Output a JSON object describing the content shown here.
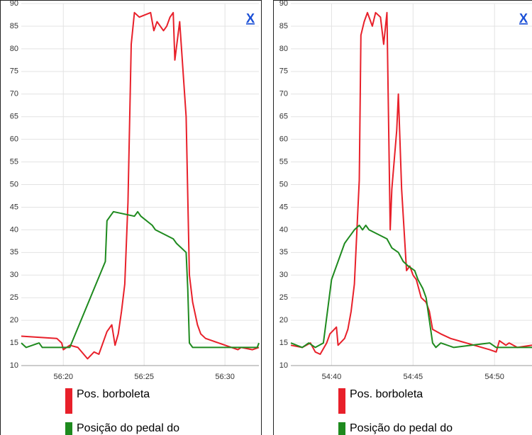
{
  "chart_data": [
    {
      "type": "line",
      "close_label": "X",
      "xlim": [
        3377.4,
        3392.1
      ],
      "xticks": [
        {
          "value": 3380,
          "label": "56:20"
        },
        {
          "value": 3385,
          "label": "56:25"
        },
        {
          "value": 3390,
          "label": "56:30"
        }
      ],
      "ylim": [
        10,
        90
      ],
      "yticks": [
        10,
        15,
        20,
        25,
        30,
        35,
        40,
        45,
        50,
        55,
        60,
        65,
        70,
        75,
        80,
        85,
        90
      ],
      "grid": true,
      "series": [
        {
          "name": "Pos. borboleta",
          "color": "#e8202a",
          "x": [
            3377.4,
            3379.6,
            3379.9,
            3380.0,
            3380.4,
            3380.9,
            3381.5,
            3381.9,
            3382.2,
            3382.7,
            3383.0,
            3383.2,
            3383.4,
            3383.6,
            3383.8,
            3384.0,
            3384.2,
            3384.4,
            3384.7,
            3385.4,
            3385.6,
            3385.8,
            3386.2,
            3386.4,
            3386.6,
            3386.8,
            3386.9,
            3387.2,
            3387.6,
            3387.8,
            3388.0,
            3388.3,
            3388.5,
            3388.8,
            3390.8,
            3391.0,
            3391.7,
            3392.1
          ],
          "values": [
            16.5,
            16,
            15,
            13.5,
            14.5,
            14,
            11.5,
            13,
            12.5,
            17.5,
            19,
            14.5,
            17,
            22,
            28,
            46,
            81,
            88,
            87,
            88,
            84,
            86,
            84,
            85,
            87,
            88,
            77.5,
            86,
            65,
            30,
            24,
            19,
            17,
            16,
            13.5,
            14,
            13.5,
            14
          ]
        },
        {
          "name": "Posição do pedal do",
          "color": "#1e8a1e",
          "x": [
            3377.4,
            3377.7,
            3378.5,
            3378.7,
            3380.4,
            3382.6,
            3382.7,
            3382.9,
            3383.1,
            3384.4,
            3384.6,
            3384.8,
            3385.5,
            3385.7,
            3386.8,
            3387.0,
            3387.6,
            3387.7,
            3387.8,
            3388.0,
            3392.0,
            3392.1
          ],
          "values": [
            15,
            14,
            15,
            14,
            14,
            33,
            42,
            43,
            44,
            43,
            44,
            43,
            41,
            40,
            38,
            37,
            35,
            27,
            15,
            14,
            14,
            15
          ]
        }
      ]
    },
    {
      "type": "line",
      "close_label": "X",
      "xlim": [
        3277.5,
        3292.3
      ],
      "xticks": [
        {
          "value": 3280,
          "label": "54:40"
        },
        {
          "value": 3285,
          "label": "54:45"
        },
        {
          "value": 3290,
          "label": "54:50"
        }
      ],
      "ylim": [
        10,
        90
      ],
      "yticks": [
        10,
        15,
        20,
        25,
        30,
        35,
        40,
        45,
        50,
        55,
        60,
        65,
        70,
        75,
        80,
        85,
        90
      ],
      "grid": true,
      "series": [
        {
          "name": "Pos. borboleta",
          "color": "#e8202a",
          "x": [
            3277.5,
            3278.2,
            3278.7,
            3279.0,
            3279.3,
            3279.7,
            3279.9,
            3280.3,
            3280.4,
            3280.8,
            3281.0,
            3281.2,
            3281.4,
            3281.7,
            3281.8,
            3282.0,
            3282.2,
            3282.5,
            3282.7,
            3283.0,
            3283.2,
            3283.4,
            3283.6,
            3283.7,
            3284.0,
            3284.1,
            3284.3,
            3284.6,
            3284.8,
            3285.0,
            3285.2,
            3285.5,
            3285.8,
            3286.0,
            3286.2,
            3286.7,
            3287.3,
            3289.7,
            3290.1,
            3290.3,
            3290.7,
            3290.9,
            3291.4,
            3292.3
          ],
          "values": [
            14.5,
            14,
            15,
            13,
            12.5,
            15,
            17,
            18.5,
            14.5,
            16,
            18,
            22,
            28,
            51,
            83,
            86,
            88,
            85,
            88,
            87,
            81,
            88,
            40,
            49,
            62,
            70,
            49,
            31,
            32,
            30,
            29,
            25,
            24,
            22,
            18,
            17,
            16,
            13.5,
            13,
            15.5,
            14.5,
            15,
            14,
            14.5
          ]
        },
        {
          "name": "Posição do pedal do",
          "color": "#1e8a1e",
          "x": [
            3277.5,
            3278.2,
            3278.6,
            3279.0,
            3279.5,
            3280.0,
            3280.8,
            3281.0,
            3281.2,
            3281.4,
            3281.7,
            3281.9,
            3282.1,
            3282.3,
            3283.4,
            3283.7,
            3284.1,
            3284.4,
            3284.7,
            3285.1,
            3285.3,
            3285.6,
            3285.8,
            3286.0,
            3286.2,
            3286.4,
            3286.7,
            3287.5,
            3289.7,
            3290.1,
            3292.3
          ],
          "values": [
            15,
            14,
            15,
            14,
            15,
            29,
            37,
            38,
            39,
            40,
            41,
            40,
            41,
            40,
            38,
            36,
            35,
            33,
            32,
            31,
            29,
            27,
            25,
            20,
            15,
            14,
            15,
            14,
            15,
            14,
            14
          ]
        }
      ]
    }
  ]
}
